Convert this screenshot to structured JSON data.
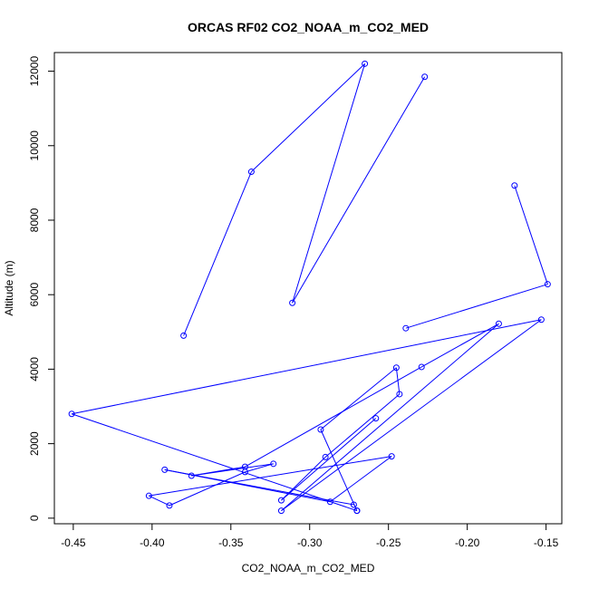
{
  "chart_data": {
    "type": "line",
    "title": "ORCAS RF02 CO2_NOAA_m_CO2_MED",
    "xlabel": "CO2_NOAA_m_CO2_MED",
    "ylabel": "Altitude (m)",
    "xlim": [
      -0.462,
      -0.14
    ],
    "ylim": [
      -150,
      12500
    ],
    "x_ticks": [
      -0.45,
      -0.4,
      -0.35,
      -0.3,
      -0.25,
      -0.2,
      -0.15
    ],
    "x_tick_labels": [
      "-0.45",
      "-0.40",
      "-0.35",
      "-0.30",
      "-0.25",
      "-0.20",
      "-0.15"
    ],
    "y_ticks": [
      0,
      2000,
      4000,
      6000,
      8000,
      10000,
      12000
    ],
    "y_tick_labels": [
      "0",
      "2000",
      "4000",
      "6000",
      "8000",
      "10000",
      "12000"
    ],
    "marker": "open-circle",
    "color": "#0000ff",
    "series": [
      {
        "points": [
          {
            "x": -0.38,
            "y": 4900
          },
          {
            "x": -0.337,
            "y": 9300
          },
          {
            "x": -0.265,
            "y": 12200
          },
          {
            "x": -0.311,
            "y": 5780
          },
          {
            "x": -0.227,
            "y": 11850
          }
        ]
      },
      {
        "points": [
          {
            "x": -0.17,
            "y": 8930
          },
          {
            "x": -0.149,
            "y": 6280
          },
          {
            "x": -0.239,
            "y": 5100
          }
        ]
      },
      {
        "points": [
          {
            "x": -0.258,
            "y": 2680
          },
          {
            "x": -0.318,
            "y": 480
          },
          {
            "x": -0.29,
            "y": 1640
          },
          {
            "x": -0.243,
            "y": 3330
          },
          {
            "x": -0.245,
            "y": 4040
          },
          {
            "x": -0.293,
            "y": 2380
          },
          {
            "x": -0.27,
            "y": 200
          },
          {
            "x": -0.27,
            "y": 200
          },
          {
            "x": -0.451,
            "y": 2800
          },
          {
            "x": -0.153,
            "y": 5330
          },
          {
            "x": -0.318,
            "y": 200
          },
          {
            "x": -0.18,
            "y": 5220
          },
          {
            "x": -0.229,
            "y": 4060
          },
          {
            "x": -0.341,
            "y": 1380
          },
          {
            "x": -0.375,
            "y": 1140
          },
          {
            "x": -0.323,
            "y": 1460
          },
          {
            "x": -0.341,
            "y": 1240
          },
          {
            "x": -0.389,
            "y": 340
          },
          {
            "x": -0.402,
            "y": 600
          },
          {
            "x": -0.248,
            "y": 1660
          },
          {
            "x": -0.287,
            "y": 440
          },
          {
            "x": -0.392,
            "y": 1300
          },
          {
            "x": -0.272,
            "y": 360
          }
        ]
      }
    ]
  }
}
